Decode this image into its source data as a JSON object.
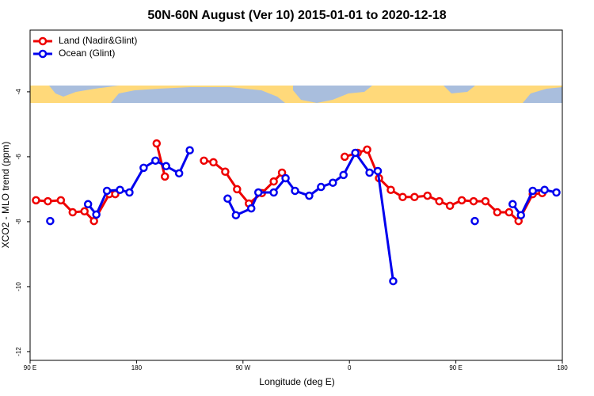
{
  "chart_data": {
    "type": "line",
    "title": "50N-60N August (Ver 10)   2015-01-01 to 2020-12-18",
    "x_label": "Longitude (deg E)",
    "y_label": "XCO2 - MLO trend (ppm)",
    "xlim": [
      90,
      540
    ],
    "xticks": [
      {
        "value": 90,
        "label": "90 E"
      },
      {
        "value": 180,
        "label": "180"
      },
      {
        "value": 270,
        "label": "90 W"
      },
      {
        "value": 360,
        "label": "0"
      },
      {
        "value": 450,
        "label": "90 E"
      },
      {
        "value": 540,
        "label": "180"
      }
    ],
    "ylim": [
      -12.27,
      -2.1
    ],
    "yticks": [
      -12,
      -10,
      -8,
      -6,
      -4
    ],
    "legend": "top-left",
    "series": [
      {
        "name": "Land (Nadir&Glint)",
        "color": "#ee0000",
        "x": [
          95,
          105,
          116,
          126,
          136,
          144,
          157,
          162,
          null,
          197,
          204,
          null,
          237,
          245,
          255,
          265,
          275,
          286,
          296,
          303,
          null,
          356,
          367,
          375,
          385,
          395,
          405,
          415,
          426,
          436,
          445,
          455,
          465,
          475,
          485,
          495,
          503,
          515,
          523
        ],
        "values": [
          -7.34,
          -7.37,
          -7.34,
          -7.71,
          -7.68,
          -7.98,
          -7.15,
          -7.15,
          null,
          -5.59,
          -6.61,
          null,
          -6.12,
          -6.17,
          -6.46,
          -7.0,
          -7.44,
          -7.12,
          -6.76,
          -6.49,
          null,
          -6.0,
          -5.88,
          -5.78,
          -6.66,
          -7.02,
          -7.24,
          -7.24,
          -7.2,
          -7.37,
          -7.51,
          -7.34,
          -7.37,
          -7.37,
          -7.71,
          -7.71,
          -7.98,
          -7.15,
          -7.12
        ]
      },
      {
        "name": "Ocean (Glint)",
        "color": "#0000ee",
        "x": [
          107,
          null,
          139,
          146,
          155,
          166,
          174,
          186,
          196,
          205,
          216,
          225,
          null,
          257,
          264,
          277,
          283,
          296,
          306,
          314,
          326,
          336,
          346,
          355,
          365,
          377,
          384,
          397,
          null,
          466,
          null,
          498,
          505,
          515,
          525,
          535
        ],
        "values": [
          -7.98,
          null,
          -7.46,
          -7.78,
          -7.05,
          -7.02,
          -7.1,
          -6.34,
          -6.12,
          -6.29,
          -6.51,
          -5.8,
          null,
          -7.29,
          -7.8,
          -7.59,
          -7.1,
          -7.1,
          -6.66,
          -7.05,
          -7.2,
          -6.93,
          -6.8,
          -6.56,
          -5.88,
          -6.49,
          -6.44,
          -9.83,
          null,
          -7.98,
          null,
          -7.46,
          -7.8,
          -7.05,
          -7.02,
          -7.1
        ]
      }
    ]
  }
}
